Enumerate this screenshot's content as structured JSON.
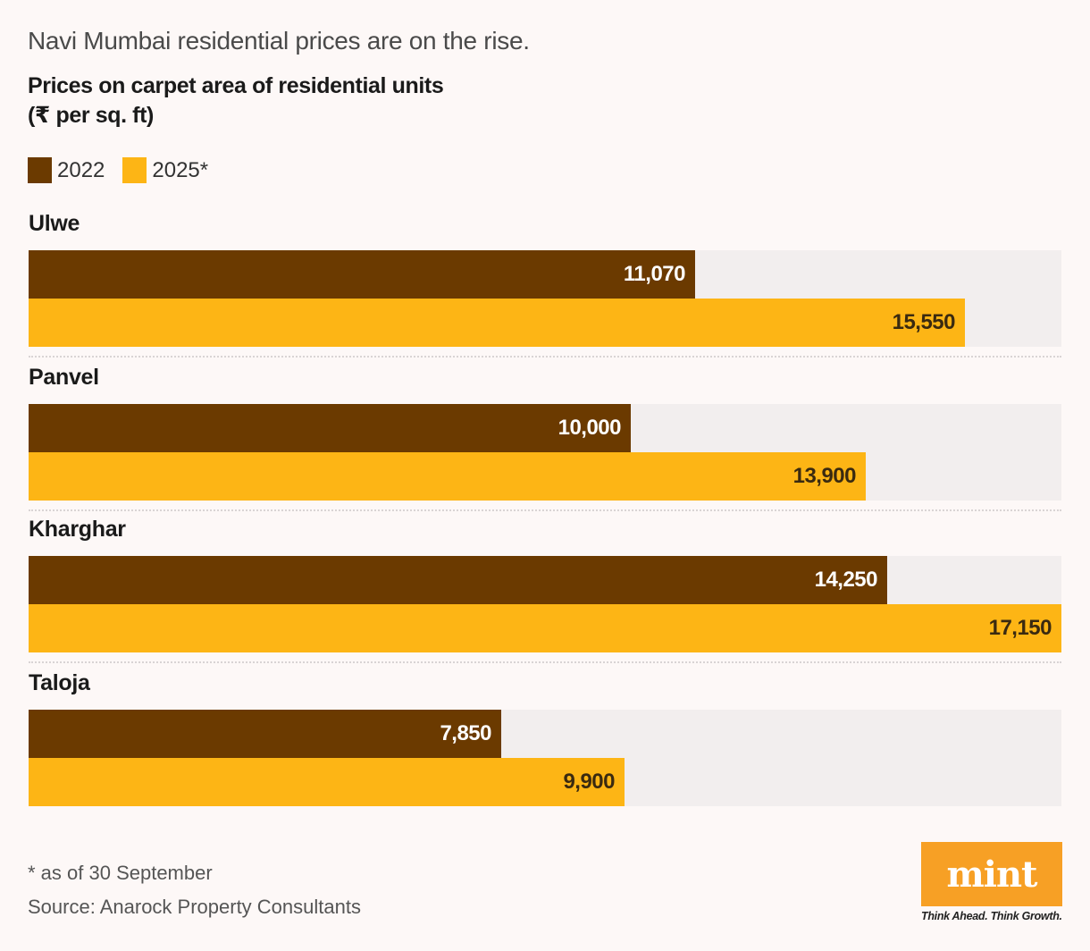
{
  "header": {
    "kicker": "Navi Mumbai residential prices are on the rise.",
    "title_line1": "Prices on carpet area of residential units",
    "title_line2": "(₹ per sq. ft)"
  },
  "legend": [
    {
      "label": "2022",
      "color": "#6b3a00"
    },
    {
      "label": "2025*",
      "color": "#fdb515"
    }
  ],
  "chart_data": {
    "type": "bar",
    "orientation": "horizontal",
    "title": "Prices on carpet area of residential units (₹ per sq. ft)",
    "subtitle": "Navi Mumbai residential prices are on the rise.",
    "xlabel": "",
    "ylabel": "",
    "xlim": [
      0,
      17150
    ],
    "grid": false,
    "legend_position": "top-left",
    "categories": [
      "Ulwe",
      "Panvel",
      "Kharghar",
      "Taloja"
    ],
    "series": [
      {
        "name": "2022",
        "color": "#6b3a00",
        "values": [
          11070,
          10000,
          14250,
          7850
        ],
        "labels": [
          "11,070",
          "10,000",
          "14,250",
          "7,850"
        ]
      },
      {
        "name": "2025*",
        "color": "#fdb515",
        "values": [
          15550,
          13900,
          17150,
          9900
        ],
        "labels": [
          "15,550",
          "13,900",
          "17,150",
          "9,900"
        ]
      }
    ]
  },
  "footer": {
    "footnote": "* as of 30 September",
    "source": "Source: Anarock Property Consultants",
    "logo_text": "mint",
    "tagline": "Think Ahead. Think Growth."
  }
}
